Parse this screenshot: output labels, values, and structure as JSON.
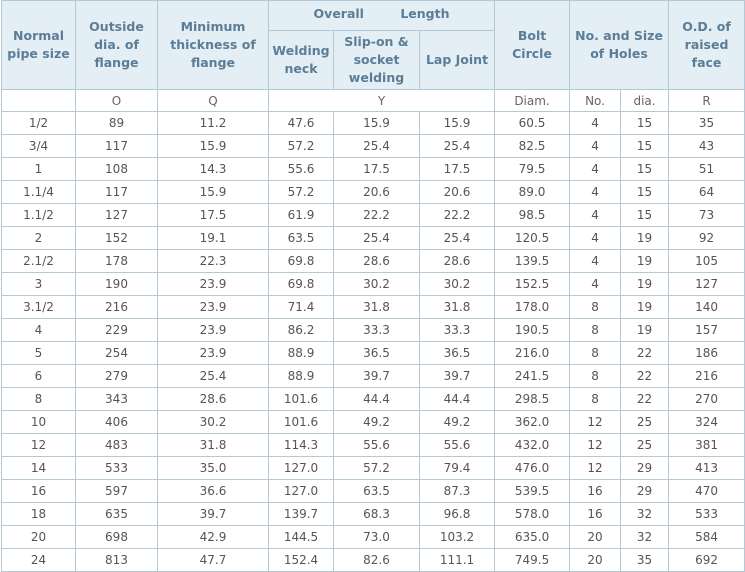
{
  "table": {
    "header": {
      "top": [
        "Normal pipe size",
        "Outside dia. of flange",
        "Minimum thickness of flange",
        "Overall Length",
        "Bolt Circle",
        "No. and Size of Holes",
        "O.D. of raised face"
      ],
      "sub": [
        "Welding neck",
        "Slip-on & socket welding",
        "Lap Joint"
      ]
    },
    "units": [
      "O",
      "Q",
      "Y",
      "Diam.",
      "No.",
      "dia.",
      "R"
    ],
    "rows": [
      [
        "1/2",
        "89",
        "11.2",
        "47.6",
        "15.9",
        "15.9",
        "60.5",
        "4",
        "15",
        "35"
      ],
      [
        "3/4",
        "117",
        "15.9",
        "57.2",
        "25.4",
        "25.4",
        "82.5",
        "4",
        "15",
        "43"
      ],
      [
        "1",
        "108",
        "14.3",
        "55.6",
        "17.5",
        "17.5",
        "79.5",
        "4",
        "15",
        "51"
      ],
      [
        "1.1/4",
        "117",
        "15.9",
        "57.2",
        "20.6",
        "20.6",
        "89.0",
        "4",
        "15",
        "64"
      ],
      [
        "1.1/2",
        "127",
        "17.5",
        "61.9",
        "22.2",
        "22.2",
        "98.5",
        "4",
        "15",
        "73"
      ],
      [
        "2",
        "152",
        "19.1",
        "63.5",
        "25.4",
        "25.4",
        "120.5",
        "4",
        "19",
        "92"
      ],
      [
        "2.1/2",
        "178",
        "22.3",
        "69.8",
        "28.6",
        "28.6",
        "139.5",
        "4",
        "19",
        "105"
      ],
      [
        "3",
        "190",
        "23.9",
        "69.8",
        "30.2",
        "30.2",
        "152.5",
        "4",
        "19",
        "127"
      ],
      [
        "3.1/2",
        "216",
        "23.9",
        "71.4",
        "31.8",
        "31.8",
        "178.0",
        "8",
        "19",
        "140"
      ],
      [
        "4",
        "229",
        "23.9",
        "86.2",
        "33.3",
        "33.3",
        "190.5",
        "8",
        "19",
        "157"
      ],
      [
        "5",
        "254",
        "23.9",
        "88.9",
        "36.5",
        "36.5",
        "216.0",
        "8",
        "22",
        "186"
      ],
      [
        "6",
        "279",
        "25.4",
        "88.9",
        "39.7",
        "39.7",
        "241.5",
        "8",
        "22",
        "216"
      ],
      [
        "8",
        "343",
        "28.6",
        "101.6",
        "44.4",
        "44.4",
        "298.5",
        "8",
        "22",
        "270"
      ],
      [
        "10",
        "406",
        "30.2",
        "101.6",
        "49.2",
        "49.2",
        "362.0",
        "12",
        "25",
        "324"
      ],
      [
        "12",
        "483",
        "31.8",
        "114.3",
        "55.6",
        "55.6",
        "432.0",
        "12",
        "25",
        "381"
      ],
      [
        "14",
        "533",
        "35.0",
        "127.0",
        "57.2",
        "79.4",
        "476.0",
        "12",
        "29",
        "413"
      ],
      [
        "16",
        "597",
        "36.6",
        "127.0",
        "63.5",
        "87.3",
        "539.5",
        "16",
        "29",
        "470"
      ],
      [
        "18",
        "635",
        "39.7",
        "139.7",
        "68.3",
        "96.8",
        "578.0",
        "16",
        "32",
        "533"
      ],
      [
        "20",
        "698",
        "42.9",
        "144.5",
        "73.0",
        "103.2",
        "635.0",
        "20",
        "32",
        "584"
      ],
      [
        "24",
        "813",
        "47.7",
        "152.4",
        "82.6",
        "111.1",
        "749.5",
        "20",
        "35",
        "692"
      ]
    ]
  }
}
